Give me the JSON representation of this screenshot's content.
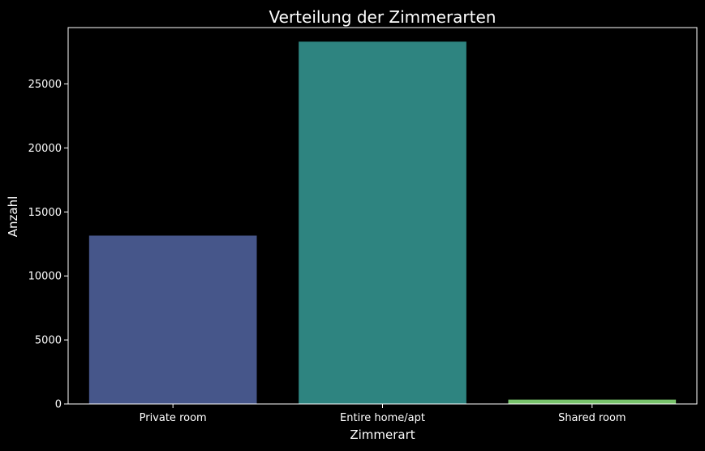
{
  "chart_data": {
    "type": "bar",
    "title": "Verteilung der Zimmerarten",
    "xlabel": "Zimmerart",
    "ylabel": "Anzahl",
    "categories": [
      "Private room",
      "Entire home/apt",
      "Shared room"
    ],
    "values": [
      13150,
      28300,
      340
    ],
    "colors": [
      "#46568a",
      "#2e8480",
      "#78c36b"
    ],
    "ylim": [
      0,
      29400
    ],
    "yticks": [
      0,
      5000,
      10000,
      15000,
      20000,
      25000
    ],
    "grid": false,
    "legend": "none",
    "background": "#000000",
    "axis_color": "#ffffff"
  }
}
